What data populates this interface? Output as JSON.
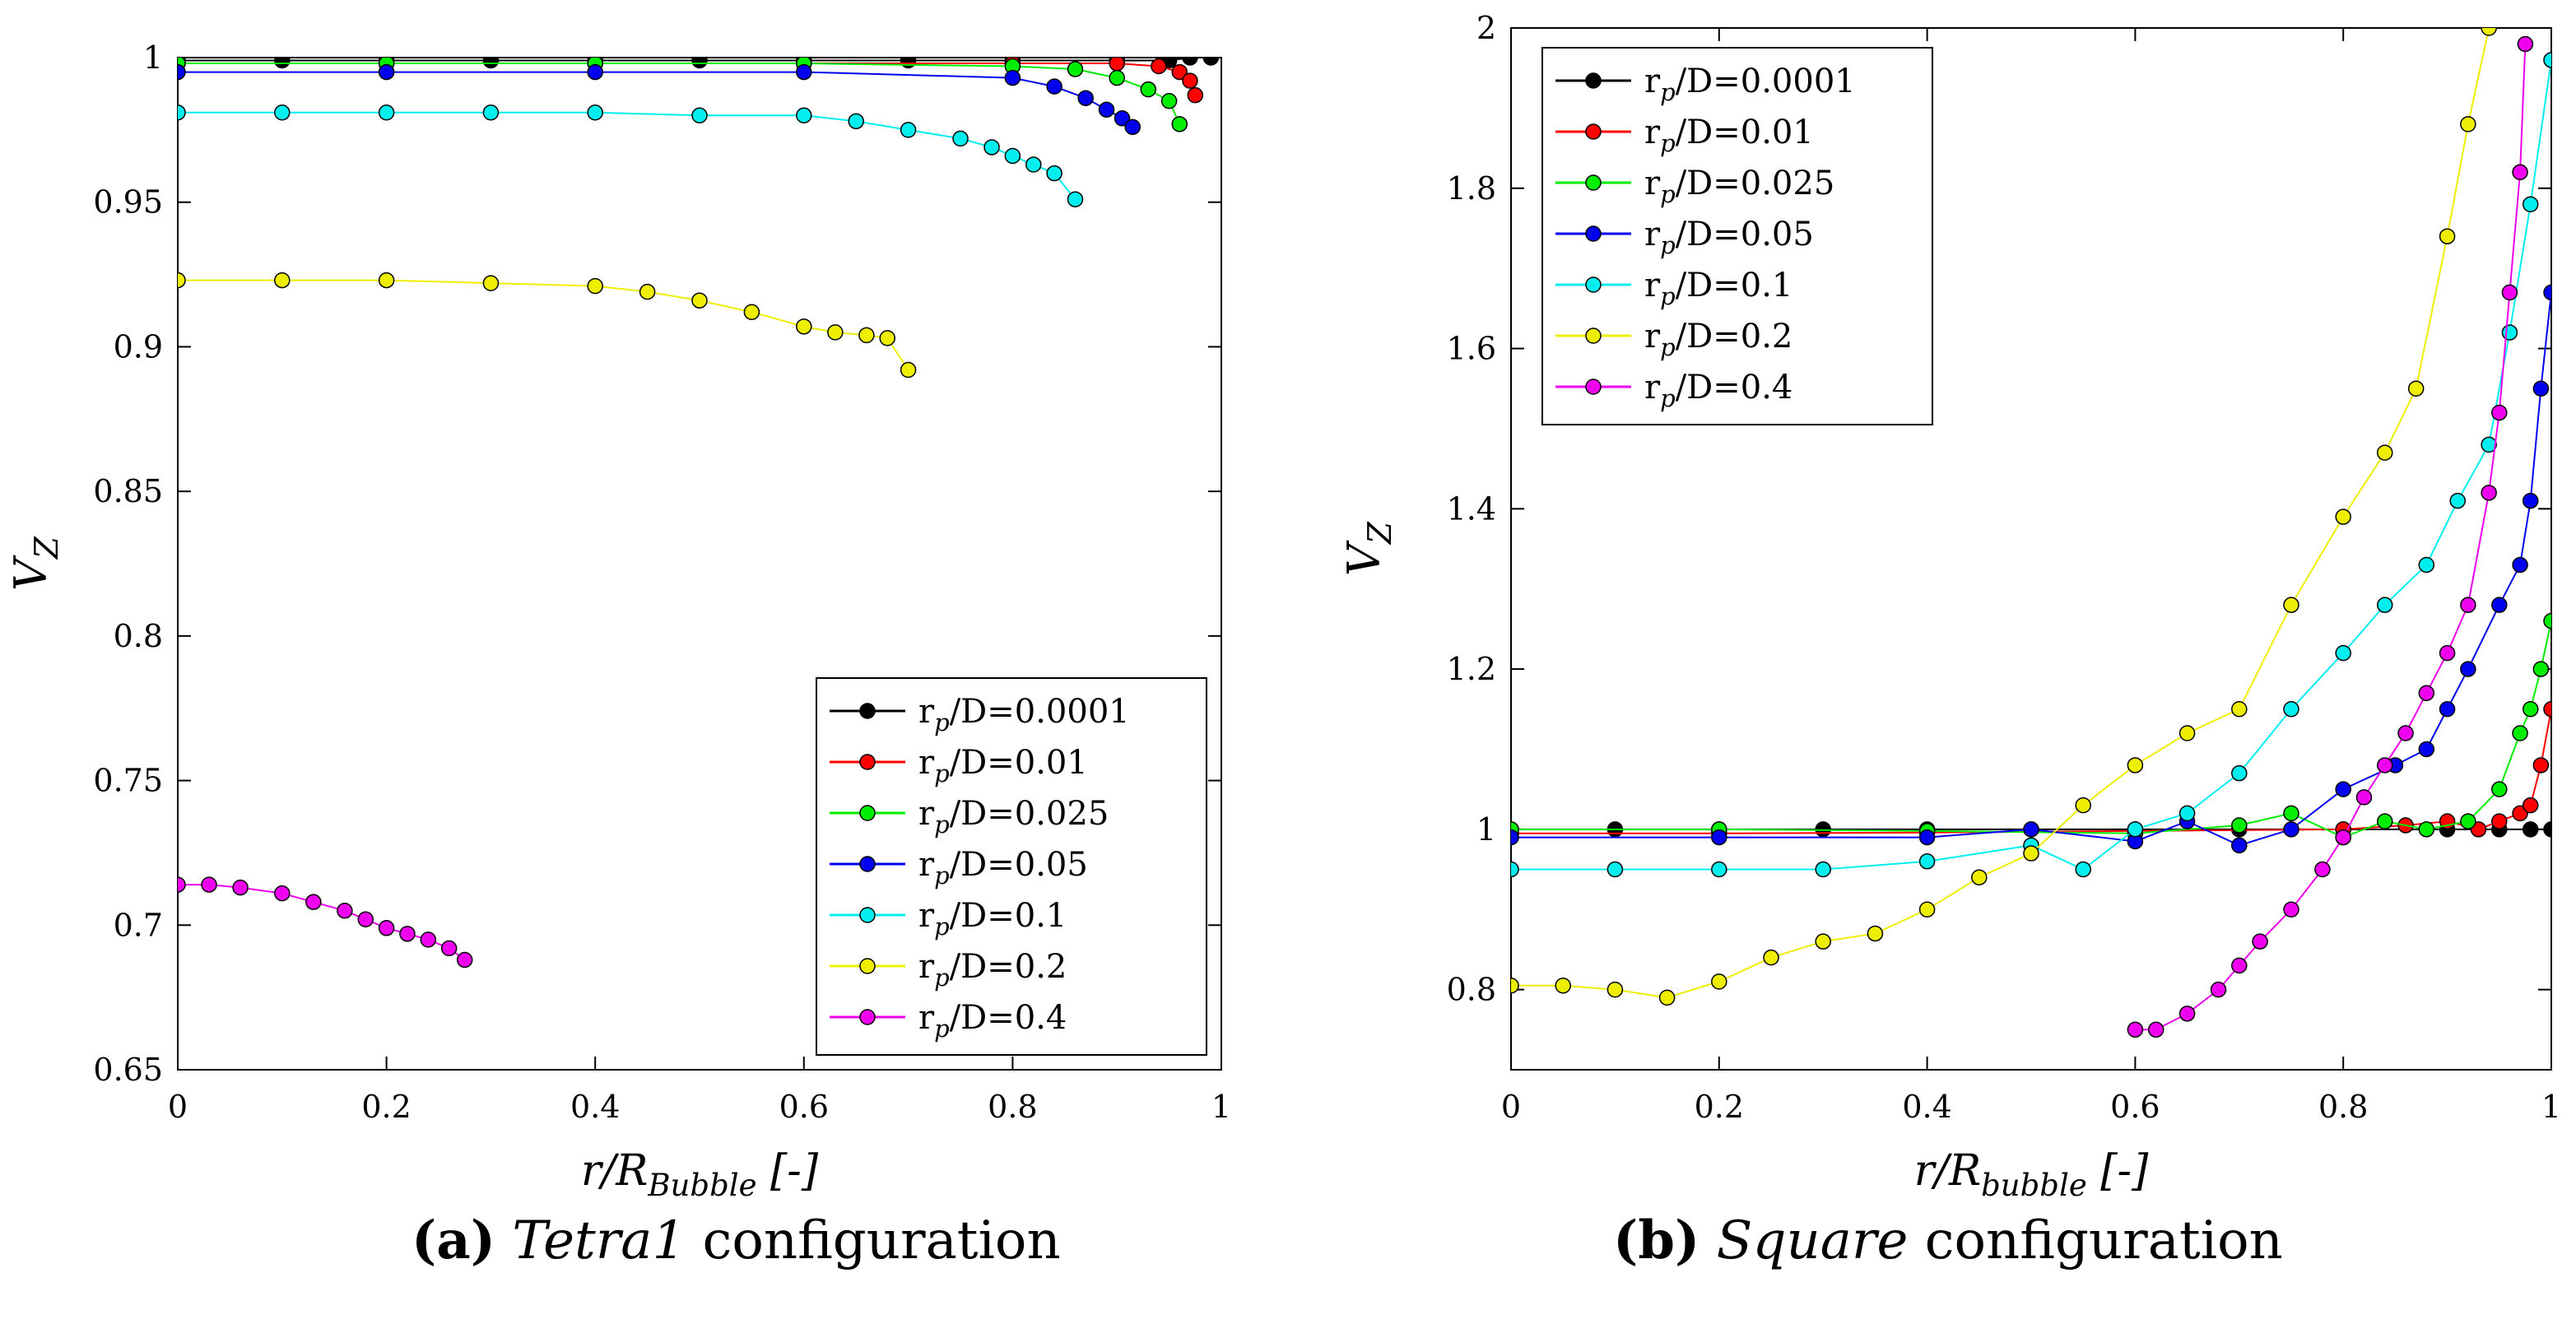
{
  "chart_data": [
    {
      "type": "scatter",
      "panel": "a",
      "xlabel": "r/R_Bubble [-]",
      "ylabel": "V_Z",
      "xlim": [
        0,
        1
      ],
      "ylim": [
        0.65,
        1.0
      ],
      "xticks": [
        0,
        0.2,
        0.4,
        0.6,
        0.8,
        1
      ],
      "xtick_labels": [
        "0",
        "0.2",
        "0.4",
        "0.6",
        "0.8",
        "1"
      ],
      "yticks": [
        0.65,
        0.7,
        0.75,
        0.8,
        0.85,
        0.9,
        0.95,
        1
      ],
      "ytick_labels": [
        "0.65",
        "0.7",
        "0.75",
        "0.8",
        "0.85",
        "0.9",
        "0.95",
        "1"
      ],
      "legend_position": "bottom-right",
      "series": [
        {
          "name": "r_p/D=0.0001",
          "color": "#000000",
          "x": [
            0,
            0.1,
            0.2,
            0.3,
            0.4,
            0.5,
            0.6,
            0.7,
            0.8,
            0.9,
            0.95,
            0.97,
            0.99
          ],
          "y": [
            0.999,
            0.999,
            0.999,
            0.999,
            0.999,
            0.999,
            0.999,
            0.999,
            0.999,
            0.999,
            0.999,
            1.0,
            1.0
          ]
        },
        {
          "name": "r_p/D=0.01",
          "color": "#ff0000",
          "x": [
            0,
            0.2,
            0.4,
            0.6,
            0.8,
            0.9,
            0.94,
            0.96,
            0.97,
            0.975
          ],
          "y": [
            0.998,
            0.998,
            0.998,
            0.998,
            0.998,
            0.998,
            0.997,
            0.995,
            0.992,
            0.987
          ]
        },
        {
          "name": "r_p/D=0.025",
          "color": "#00ee00",
          "x": [
            0,
            0.2,
            0.4,
            0.6,
            0.8,
            0.86,
            0.9,
            0.93,
            0.95,
            0.96
          ],
          "y": [
            0.998,
            0.998,
            0.998,
            0.998,
            0.997,
            0.996,
            0.993,
            0.989,
            0.985,
            0.977
          ]
        },
        {
          "name": "r_p/D=0.05",
          "color": "#0000ee",
          "x": [
            0,
            0.2,
            0.4,
            0.6,
            0.8,
            0.84,
            0.87,
            0.89,
            0.905,
            0.915
          ],
          "y": [
            0.995,
            0.995,
            0.995,
            0.995,
            0.993,
            0.99,
            0.986,
            0.982,
            0.979,
            0.976
          ]
        },
        {
          "name": "r_p/D=0.1",
          "color": "#00eeee",
          "x": [
            0,
            0.1,
            0.2,
            0.3,
            0.4,
            0.5,
            0.6,
            0.65,
            0.7,
            0.75,
            0.78,
            0.8,
            0.82,
            0.84,
            0.86
          ],
          "y": [
            0.981,
            0.981,
            0.981,
            0.981,
            0.981,
            0.98,
            0.98,
            0.978,
            0.975,
            0.972,
            0.969,
            0.966,
            0.963,
            0.96,
            0.951
          ]
        },
        {
          "name": "r_p/D=0.2",
          "color": "#eeee00",
          "x": [
            0,
            0.1,
            0.2,
            0.3,
            0.4,
            0.45,
            0.5,
            0.55,
            0.6,
            0.63,
            0.66,
            0.68,
            0.7
          ],
          "y": [
            0.923,
            0.923,
            0.923,
            0.922,
            0.921,
            0.919,
            0.916,
            0.912,
            0.907,
            0.905,
            0.904,
            0.903,
            0.892
          ]
        },
        {
          "name": "r_p/D=0.4",
          "color": "#ee00ee",
          "x": [
            0,
            0.03,
            0.06,
            0.1,
            0.13,
            0.16,
            0.18,
            0.2,
            0.22,
            0.24,
            0.26,
            0.275
          ],
          "y": [
            0.714,
            0.714,
            0.713,
            0.711,
            0.708,
            0.705,
            0.702,
            0.699,
            0.697,
            0.695,
            0.692,
            0.688
          ]
        }
      ]
    },
    {
      "type": "scatter",
      "panel": "b",
      "xlabel": "r/R_bubble [-]",
      "ylabel": "V_Z",
      "xlim": [
        0,
        1
      ],
      "ylim": [
        0.7,
        2.0
      ],
      "xticks": [
        0,
        0.2,
        0.4,
        0.6,
        0.8,
        1
      ],
      "xtick_labels": [
        "0",
        "0.2",
        "0.4",
        "0.6",
        "0.8",
        "1"
      ],
      "yticks": [
        0.8,
        1.0,
        1.2,
        1.4,
        1.6,
        1.8,
        2.0
      ],
      "ytick_labels": [
        "0.8",
        "1",
        "1.2",
        "1.4",
        "1.6",
        "1.8",
        "2"
      ],
      "legend_position": "top-left",
      "series": [
        {
          "name": "r_p/D=0.0001",
          "color": "#000000",
          "x": [
            0,
            0.1,
            0.2,
            0.3,
            0.4,
            0.5,
            0.6,
            0.7,
            0.8,
            0.9,
            0.95,
            0.98,
            1.0
          ],
          "y": [
            1.0,
            1.0,
            1.0,
            1.0,
            1.0,
            1.0,
            1.0,
            1.0,
            1.0,
            1.0,
            1.0,
            1.0,
            1.0
          ]
        },
        {
          "name": "r_p/D=0.01",
          "color": "#ff0000",
          "x": [
            0,
            0.2,
            0.4,
            0.6,
            0.8,
            0.86,
            0.9,
            0.93,
            0.95,
            0.97,
            0.98,
            0.99,
            1.0
          ],
          "y": [
            0.995,
            0.995,
            0.996,
            0.998,
            1.0,
            1.005,
            1.01,
            1.0,
            1.01,
            1.02,
            1.03,
            1.08,
            1.15
          ]
        },
        {
          "name": "r_p/D=0.025",
          "color": "#00ee00",
          "x": [
            0,
            0.2,
            0.4,
            0.6,
            0.7,
            0.75,
            0.8,
            0.84,
            0.88,
            0.92,
            0.95,
            0.97,
            0.98,
            0.99,
            1.0
          ],
          "y": [
            1.0,
            1.0,
            0.998,
            0.995,
            1.005,
            1.02,
            0.99,
            1.01,
            1.0,
            1.01,
            1.05,
            1.12,
            1.15,
            1.2,
            1.26
          ]
        },
        {
          "name": "r_p/D=0.05",
          "color": "#0000ee",
          "x": [
            0,
            0.2,
            0.4,
            0.5,
            0.6,
            0.65,
            0.7,
            0.75,
            0.8,
            0.85,
            0.88,
            0.9,
            0.92,
            0.95,
            0.97,
            0.98,
            0.99,
            1.0
          ],
          "y": [
            0.99,
            0.99,
            0.99,
            1.0,
            0.985,
            1.01,
            0.98,
            1.0,
            1.05,
            1.08,
            1.1,
            1.15,
            1.2,
            1.28,
            1.33,
            1.41,
            1.55,
            1.67
          ]
        },
        {
          "name": "r_p/D=0.1",
          "color": "#00eeee",
          "x": [
            0,
            0.1,
            0.2,
            0.3,
            0.4,
            0.5,
            0.55,
            0.6,
            0.65,
            0.7,
            0.75,
            0.8,
            0.84,
            0.88,
            0.91,
            0.94,
            0.96,
            0.98,
            1.0
          ],
          "y": [
            0.95,
            0.95,
            0.95,
            0.95,
            0.96,
            0.98,
            0.95,
            1.0,
            1.02,
            1.07,
            1.15,
            1.22,
            1.28,
            1.33,
            1.41,
            1.48,
            1.62,
            1.78,
            1.96
          ]
        },
        {
          "name": "r_p/D=0.2",
          "color": "#eeee00",
          "x": [
            0,
            0.05,
            0.1,
            0.15,
            0.2,
            0.25,
            0.3,
            0.35,
            0.4,
            0.45,
            0.5,
            0.55,
            0.6,
            0.65,
            0.7,
            0.75,
            0.8,
            0.84,
            0.87,
            0.9,
            0.92,
            0.94
          ],
          "y": [
            0.805,
            0.805,
            0.8,
            0.79,
            0.81,
            0.84,
            0.86,
            0.87,
            0.9,
            0.94,
            0.97,
            1.03,
            1.08,
            1.12,
            1.15,
            1.28,
            1.39,
            1.47,
            1.55,
            1.74,
            1.88,
            2.0
          ]
        },
        {
          "name": "r_p/D=0.4",
          "color": "#ee00ee",
          "x": [
            0.6,
            0.62,
            0.65,
            0.68,
            0.7,
            0.72,
            0.75,
            0.78,
            0.8,
            0.82,
            0.84,
            0.86,
            0.88,
            0.9,
            0.92,
            0.94,
            0.95,
            0.96,
            0.97,
            0.975
          ],
          "y": [
            0.75,
            0.75,
            0.77,
            0.8,
            0.83,
            0.86,
            0.9,
            0.95,
            0.99,
            1.04,
            1.08,
            1.12,
            1.17,
            1.22,
            1.28,
            1.42,
            1.52,
            1.67,
            1.82,
            1.98
          ]
        }
      ]
    }
  ],
  "captions": {
    "a": {
      "label": "(a)",
      "name": "Tetra1",
      "suffix": "configuration"
    },
    "b": {
      "label": "(b)",
      "name": "Square",
      "suffix": "configuration"
    }
  }
}
